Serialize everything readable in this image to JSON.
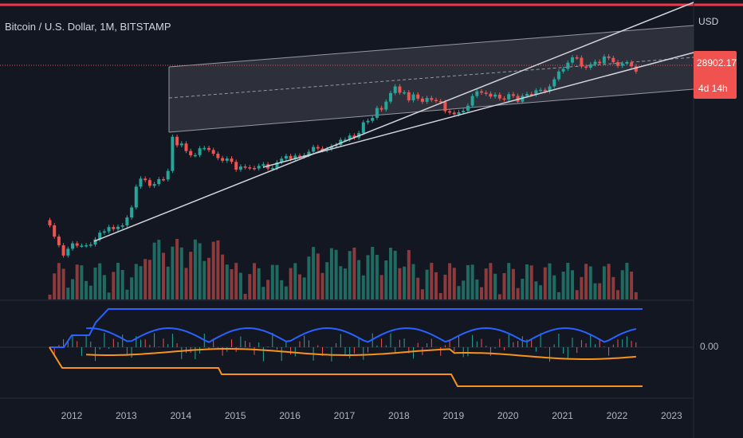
{
  "header": {
    "symbol_title": "Bitcoin / U.S. Dollar, 1M, BITSTAMP",
    "currency": "USD"
  },
  "price_tag": {
    "last_price": "28902.17",
    "countdown": "4d 14h",
    "color": "#f0524f"
  },
  "indicator": {
    "zero_label": "0.00"
  },
  "x_axis": {
    "years": [
      "2012",
      "2013",
      "2014",
      "2015",
      "2016",
      "2017",
      "2018",
      "2019",
      "2020",
      "2021",
      "2022",
      "2023"
    ]
  },
  "colors": {
    "background": "#131722",
    "up_candle": "#26a69a",
    "down_candle": "#ef5350",
    "volume_up": "#1f6b62",
    "volume_down": "#8c3a3c",
    "trendline": "#d1d4dc",
    "channel_fill": "#434651",
    "top_border": "#f23645",
    "indicator_blue": "#2962ff",
    "indicator_orange": "#f7931a"
  },
  "chart_data": {
    "type": "candlestick",
    "title": "Bitcoin / U.S. Dollar, 1M, BITSTAMP",
    "yscale": "log",
    "x_range": [
      "2011-08",
      "2023-06"
    ],
    "price_series": [
      [
        "2011-08",
        13.5
      ],
      [
        "2011-09",
        7.7
      ],
      [
        "2011-10",
        5.0
      ],
      [
        "2011-11",
        3.0
      ],
      [
        "2011-12",
        4.2
      ],
      [
        "2012-01",
        5.5
      ],
      [
        "2012-02",
        4.9
      ],
      [
        "2012-03",
        4.9
      ],
      [
        "2012-04",
        5.0
      ],
      [
        "2012-05",
        5.2
      ],
      [
        "2012-06",
        6.7
      ],
      [
        "2012-07",
        9.4
      ],
      [
        "2012-08",
        10.0
      ],
      [
        "2012-09",
        12.4
      ],
      [
        "2012-10",
        11.2
      ],
      [
        "2012-11",
        12.6
      ],
      [
        "2012-12",
        13.5
      ],
      [
        "2013-01",
        20.0
      ],
      [
        "2013-02",
        33.0
      ],
      [
        "2013-03",
        93.0
      ],
      [
        "2013-04",
        139.0
      ],
      [
        "2013-05",
        129.0
      ],
      [
        "2013-06",
        97.0
      ],
      [
        "2013-07",
        106.0
      ],
      [
        "2013-08",
        135.0
      ],
      [
        "2013-09",
        133.0
      ],
      [
        "2013-10",
        204.0
      ],
      [
        "2013-11",
        1120.0
      ],
      [
        "2013-12",
        732.0
      ],
      [
        "2014-01",
        800.0
      ],
      [
        "2014-02",
        550.0
      ],
      [
        "2014-03",
        445.0
      ],
      [
        "2014-04",
        448.0
      ],
      [
        "2014-05",
        628.0
      ],
      [
        "2014-06",
        640.0
      ],
      [
        "2014-07",
        580.0
      ],
      [
        "2014-08",
        480.0
      ],
      [
        "2014-09",
        387.0
      ],
      [
        "2014-10",
        338.0
      ],
      [
        "2014-11",
        378.0
      ],
      [
        "2014-12",
        320.0
      ],
      [
        "2015-01",
        217.0
      ],
      [
        "2015-02",
        254.0
      ],
      [
        "2015-03",
        244.0
      ],
      [
        "2015-04",
        236.0
      ],
      [
        "2015-05",
        230.0
      ],
      [
        "2015-06",
        263.0
      ],
      [
        "2015-07",
        284.0
      ],
      [
        "2015-08",
        230.0
      ],
      [
        "2015-09",
        236.0
      ],
      [
        "2015-10",
        314.0
      ],
      [
        "2015-11",
        377.0
      ],
      [
        "2015-12",
        430.0
      ],
      [
        "2016-01",
        368.0
      ],
      [
        "2016-02",
        437.0
      ],
      [
        "2016-03",
        416.0
      ],
      [
        "2016-04",
        448.0
      ],
      [
        "2016-05",
        531.0
      ],
      [
        "2016-06",
        673.0
      ],
      [
        "2016-07",
        624.0
      ],
      [
        "2016-08",
        573.0
      ],
      [
        "2016-09",
        609.0
      ],
      [
        "2016-10",
        700.0
      ],
      [
        "2016-11",
        742.0
      ],
      [
        "2016-12",
        963.0
      ],
      [
        "2017-01",
        970.0
      ],
      [
        "2017-02",
        1190.0
      ],
      [
        "2017-03",
        1080.0
      ],
      [
        "2017-04",
        1350.0
      ],
      [
        "2017-05",
        2300.0
      ],
      [
        "2017-06",
        2480.0
      ],
      [
        "2017-07",
        2875.0
      ],
      [
        "2017-08",
        4700.0
      ],
      [
        "2017-09",
        4340.0
      ],
      [
        "2017-10",
        6460.0
      ],
      [
        "2017-11",
        9900.0
      ],
      [
        "2017-12",
        13800.0
      ],
      [
        "2018-01",
        10100.0
      ],
      [
        "2018-02",
        10300.0
      ],
      [
        "2018-03",
        6900.0
      ],
      [
        "2018-04",
        9240.0
      ],
      [
        "2018-05",
        7500.0
      ],
      [
        "2018-06",
        6400.0
      ],
      [
        "2018-07",
        7730.0
      ],
      [
        "2018-08",
        7030.0
      ],
      [
        "2018-09",
        6630.0
      ],
      [
        "2018-10",
        6300.0
      ],
      [
        "2018-11",
        4010.0
      ],
      [
        "2018-12",
        3740.0
      ],
      [
        "2019-01",
        3440.0
      ],
      [
        "2019-02",
        3800.0
      ],
      [
        "2019-03",
        4100.0
      ],
      [
        "2019-04",
        5270.0
      ],
      [
        "2019-05",
        8560.0
      ],
      [
        "2019-06",
        10800.0
      ],
      [
        "2019-07",
        10100.0
      ],
      [
        "2019-08",
        9600.0
      ],
      [
        "2019-09",
        8300.0
      ],
      [
        "2019-10",
        9150.0
      ],
      [
        "2019-11",
        7560.0
      ],
      [
        "2019-12",
        7200.0
      ],
      [
        "2020-01",
        9350.0
      ],
      [
        "2020-02",
        8600.0
      ],
      [
        "2020-03",
        6420.0
      ],
      [
        "2020-04",
        8630.0
      ],
      [
        "2020-05",
        9450.0
      ],
      [
        "2020-06",
        9140.0
      ],
      [
        "2020-07",
        11330.0
      ],
      [
        "2020-08",
        11650.0
      ],
      [
        "2020-09",
        10780.0
      ],
      [
        "2020-10",
        13790.0
      ],
      [
        "2020-11",
        19700.0
      ],
      [
        "2020-12",
        28990.0
      ],
      [
        "2021-01",
        33110.0
      ],
      [
        "2021-02",
        45160.0
      ],
      [
        "2021-03",
        58800.0
      ],
      [
        "2021-04",
        57750.0
      ],
      [
        "2021-05",
        37300.0
      ],
      [
        "2021-06",
        35040.0
      ],
      [
        "2021-07",
        41500.0
      ],
      [
        "2021-08",
        47100.0
      ],
      [
        "2021-09",
        43820.0
      ],
      [
        "2021-10",
        61300.0
      ],
      [
        "2021-11",
        57000.0
      ],
      [
        "2021-12",
        46200.0
      ],
      [
        "2022-01",
        38480.0
      ],
      [
        "2022-02",
        43190.0
      ],
      [
        "2022-03",
        45530.0
      ],
      [
        "2022-04",
        37640.0
      ],
      [
        "2022-05",
        28902.17
      ]
    ],
    "last_price": 28902.17,
    "volume": "shown as colored bars below price",
    "indicator": {
      "zero_line": 0.0
    },
    "grid": "off"
  }
}
